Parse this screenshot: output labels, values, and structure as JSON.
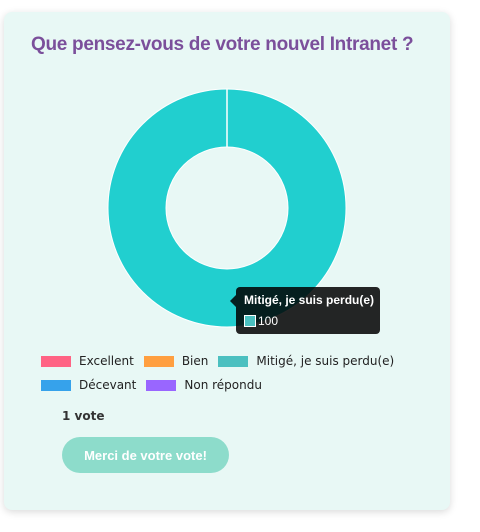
{
  "poll": {
    "question": "Que pensez-vous de votre nouvel Intranet ?",
    "vote_count": "1 vote",
    "button_label": "Merci de votre vote!"
  },
  "tooltip": {
    "title": "Mitigé, je suis perdu(e)",
    "value": "100"
  },
  "chart_data": {
    "type": "pie",
    "variant": "doughnut",
    "title": "",
    "categories": [
      "Excellent",
      "Bien",
      "Mitigé, je suis perdu(e)",
      "Décevant",
      "Non répondu"
    ],
    "values": [
      0,
      0,
      100,
      0,
      0
    ],
    "colors": [
      "#ff6384",
      "#ff9f40",
      "#4bc0c0",
      "#36a2eb",
      "#9966ff"
    ],
    "slice_color": "#21cfcf",
    "legend_position": "bottom"
  }
}
